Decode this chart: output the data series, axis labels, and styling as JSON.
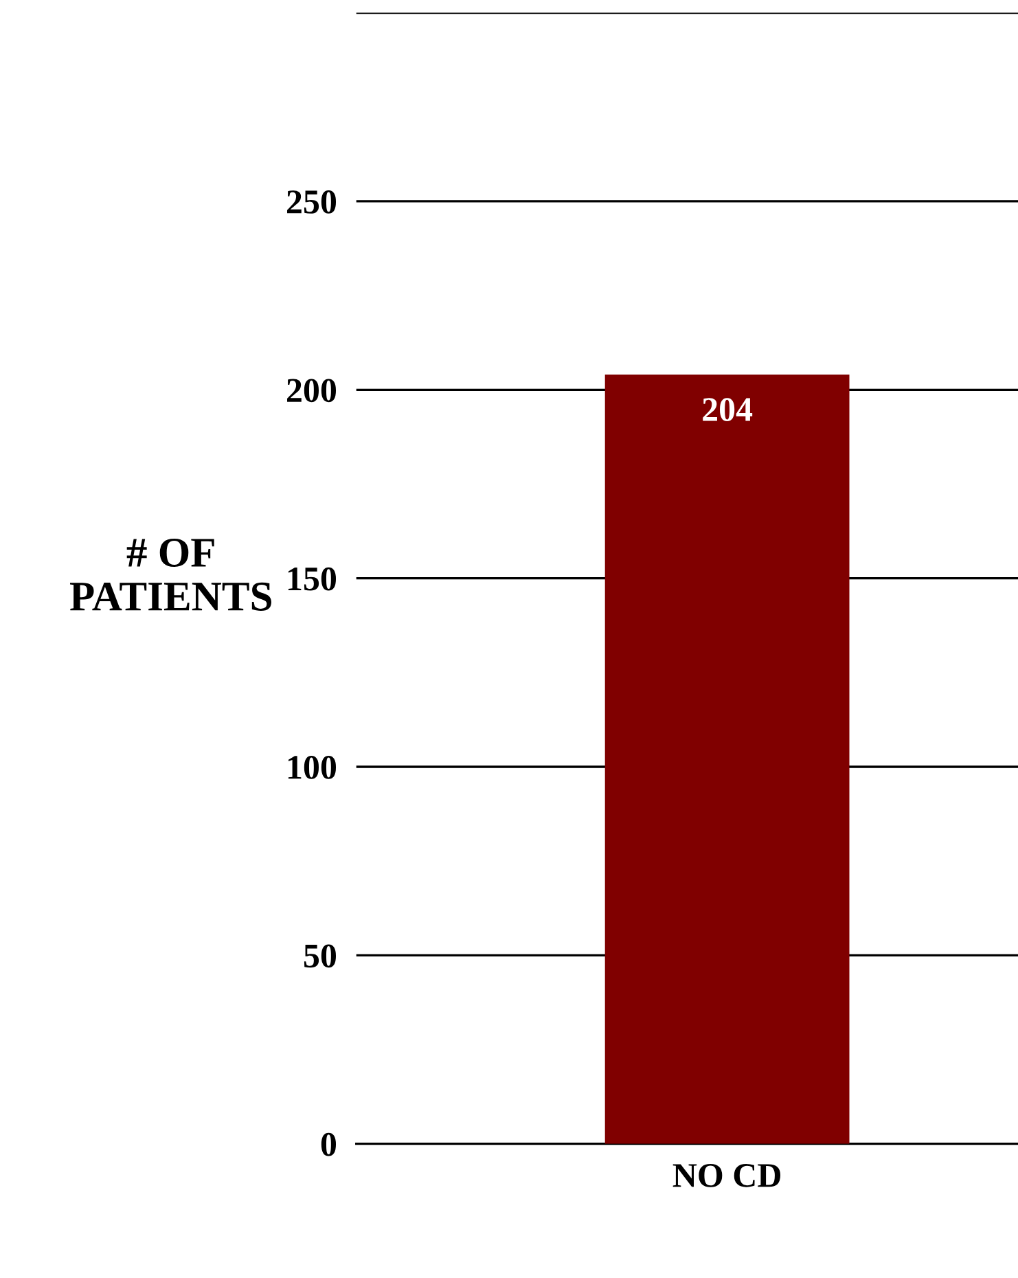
{
  "chart_data": {
    "type": "bar",
    "ylabel": "# OF\nPATIENTS",
    "categories": [
      "NO CD"
    ],
    "values": [
      204
    ],
    "color": "#800000",
    "ylim": [
      0,
      300
    ],
    "yticks": [
      0,
      50,
      100,
      150,
      200,
      250,
      {
        "value": 300,
        "label": null
      }
    ],
    "grid": "y",
    "data_labels": true
  }
}
